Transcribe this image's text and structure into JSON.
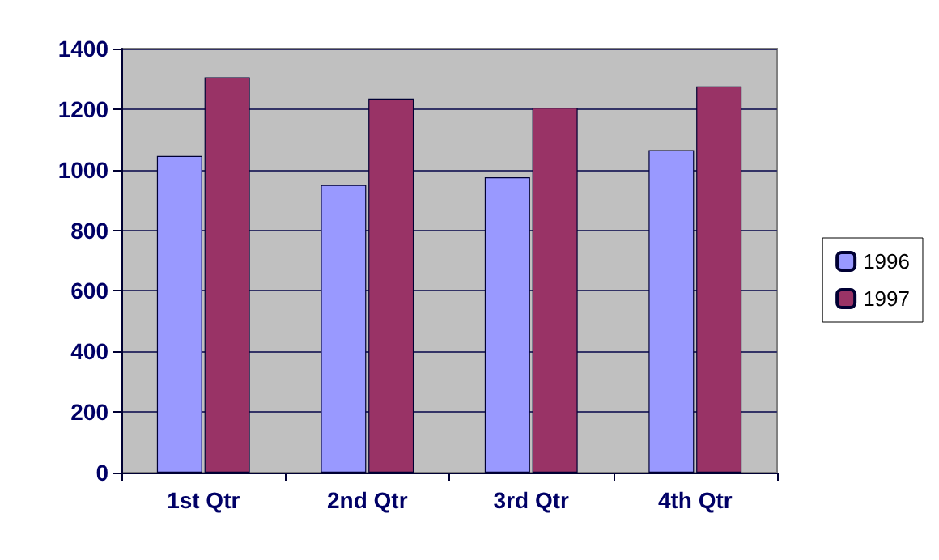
{
  "chart_data": {
    "type": "bar",
    "categories": [
      "1st Qtr",
      "2nd Qtr",
      "3rd Qtr",
      "4th Qtr"
    ],
    "series": [
      {
        "name": "1996",
        "color": "#9999ff",
        "values": [
          1045,
          950,
          975,
          1065
        ]
      },
      {
        "name": "1997",
        "color": "#993366",
        "values": [
          1305,
          1235,
          1205,
          1275
        ]
      }
    ],
    "ylim": [
      0,
      1400
    ],
    "yticks": [
      0,
      200,
      400,
      600,
      800,
      1000,
      1200,
      1400
    ],
    "grid": "y",
    "legend": "right"
  }
}
